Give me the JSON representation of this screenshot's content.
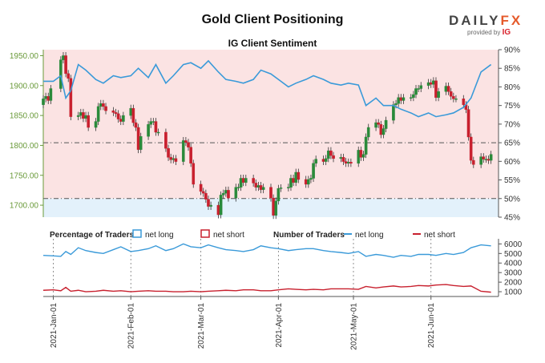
{
  "header": {
    "title": "Gold Client Positioning",
    "subtitle": "IG Client Sentiment",
    "logo_main": "DAILY",
    "logo_fx": "FX",
    "logo_provided": "provided by",
    "logo_ig": "IG"
  },
  "colors": {
    "net_long": "#3a9ad9",
    "net_short": "#c8202e",
    "up_candle": "#2a8a3a",
    "down_candle": "#c8202e",
    "short_zone": "#fbe3e3",
    "long_zone": "#e3f1fb",
    "axis_green": "#6a9a3a"
  },
  "chart_data": [
    {
      "type": "candlestick",
      "title": "IG Client Sentiment",
      "y_left": {
        "ticks": [
          "1950.00",
          "1900.00",
          "1850.00",
          "1800.00",
          "1750.00",
          "1700.00"
        ],
        "range": [
          1680,
          1960
        ]
      },
      "y_right": {
        "ticks": [
          "90%",
          "85%",
          "80%",
          "75%",
          "70%",
          "65%",
          "60%",
          "55%",
          "50%",
          "45%"
        ],
        "range": [
          45,
          90
        ]
      },
      "x_ticks": [
        "2021-Jan-01",
        "2021-Feb-01",
        "2021-Mar-01",
        "2021-Apr-01",
        "2021-May-01",
        "2021-Jun-01"
      ],
      "x_range": [
        "2020-12-28",
        "2021-06-28"
      ],
      "reference_levels_pct": [
        65,
        50
      ],
      "long_pct_series": {
        "name": "net long",
        "dates": [
          "2020-12-28",
          "2021-01-01",
          "2021-01-04",
          "2021-01-06",
          "2021-01-08",
          "2021-01-11",
          "2021-01-14",
          "2021-01-18",
          "2021-01-21",
          "2021-01-25",
          "2021-01-28",
          "2021-02-01",
          "2021-02-04",
          "2021-02-08",
          "2021-02-11",
          "2021-02-15",
          "2021-02-18",
          "2021-02-22",
          "2021-02-25",
          "2021-03-01",
          "2021-03-04",
          "2021-03-08",
          "2021-03-11",
          "2021-03-15",
          "2021-03-18",
          "2021-03-22",
          "2021-03-25",
          "2021-03-29",
          "2021-04-01",
          "2021-04-05",
          "2021-04-08",
          "2021-04-12",
          "2021-04-15",
          "2021-04-19",
          "2021-04-22",
          "2021-04-26",
          "2021-04-29",
          "2021-05-03",
          "2021-05-06",
          "2021-05-10",
          "2021-05-13",
          "2021-05-17",
          "2021-05-20",
          "2021-05-24",
          "2021-05-27",
          "2021-05-31",
          "2021-06-03",
          "2021-06-07",
          "2021-06-10",
          "2021-06-14",
          "2021-06-17",
          "2021-06-21",
          "2021-06-25"
        ],
        "values": [
          81.5,
          81.5,
          83,
          77,
          79,
          86,
          84.5,
          82,
          81,
          83,
          82.5,
          83,
          85,
          82.5,
          86,
          81,
          83,
          86,
          86.5,
          85,
          87,
          84,
          82,
          81.5,
          81,
          82,
          84.5,
          83.5,
          82,
          80,
          81,
          82,
          83,
          82,
          81,
          80.5,
          81,
          80.5,
          75,
          77,
          75,
          75,
          74,
          73,
          72,
          73,
          72,
          72.5,
          73,
          74.5,
          77,
          84,
          86
        ]
      },
      "price_candles": {
        "dates": [
          "2020-12-28",
          "2020-12-29",
          "2020-12-30",
          "2020-12-31",
          "2021-01-04",
          "2021-01-05",
          "2021-01-06",
          "2021-01-07",
          "2021-01-08",
          "2021-01-11",
          "2021-01-12",
          "2021-01-13",
          "2021-01-14",
          "2021-01-15",
          "2021-01-18",
          "2021-01-19",
          "2021-01-20",
          "2021-01-21",
          "2021-01-22",
          "2021-01-25",
          "2021-01-26",
          "2021-01-27",
          "2021-01-28",
          "2021-01-29",
          "2021-02-01",
          "2021-02-02",
          "2021-02-03",
          "2021-02-04",
          "2021-02-05",
          "2021-02-08",
          "2021-02-09",
          "2021-02-10",
          "2021-02-11",
          "2021-02-12",
          "2021-02-15",
          "2021-02-16",
          "2021-02-17",
          "2021-02-18",
          "2021-02-19",
          "2021-02-22",
          "2021-02-23",
          "2021-02-24",
          "2021-02-25",
          "2021-02-26",
          "2021-03-01",
          "2021-03-02",
          "2021-03-03",
          "2021-03-04",
          "2021-03-05",
          "2021-03-08",
          "2021-03-09",
          "2021-03-10",
          "2021-03-11",
          "2021-03-12",
          "2021-03-15",
          "2021-03-16",
          "2021-03-17",
          "2021-03-18",
          "2021-03-19",
          "2021-03-22",
          "2021-03-23",
          "2021-03-24",
          "2021-03-25",
          "2021-03-26",
          "2021-03-29",
          "2021-03-30",
          "2021-03-31",
          "2021-04-01",
          "2021-04-02",
          "2021-04-05",
          "2021-04-06",
          "2021-04-07",
          "2021-04-08",
          "2021-04-09",
          "2021-04-12",
          "2021-04-13",
          "2021-04-14",
          "2021-04-15",
          "2021-04-16",
          "2021-04-19",
          "2021-04-20",
          "2021-04-21",
          "2021-04-22",
          "2021-04-23",
          "2021-04-26",
          "2021-04-27",
          "2021-04-28",
          "2021-04-29",
          "2021-04-30",
          "2021-05-03",
          "2021-05-04",
          "2021-05-05",
          "2021-05-06",
          "2021-05-07",
          "2021-05-10",
          "2021-05-11",
          "2021-05-12",
          "2021-05-13",
          "2021-05-14",
          "2021-05-17",
          "2021-05-18",
          "2021-05-19",
          "2021-05-20",
          "2021-05-21",
          "2021-05-24",
          "2021-05-25",
          "2021-05-26",
          "2021-05-27",
          "2021-05-28",
          "2021-05-31",
          "2021-06-01",
          "2021-06-02",
          "2021-06-03",
          "2021-06-04",
          "2021-06-07",
          "2021-06-08",
          "2021-06-09",
          "2021-06-10",
          "2021-06-11",
          "2021-06-14",
          "2021-06-15",
          "2021-06-16",
          "2021-06-17",
          "2021-06-18",
          "2021-06-21",
          "2021-06-22",
          "2021-06-23",
          "2021-06-24",
          "2021-06-25"
        ],
        "close": [
          1878,
          1882,
          1875,
          1895,
          1943,
          1950,
          1920,
          1912,
          1848,
          1850,
          1855,
          1845,
          1850,
          1830,
          1840,
          1865,
          1870,
          1865,
          1858,
          1855,
          1853,
          1844,
          1840,
          1850,
          1862,
          1838,
          1830,
          1793,
          1815,
          1835,
          1840,
          1840,
          1822,
          1822,
          1795,
          1780,
          1776,
          1778,
          1773,
          1808,
          1805,
          1797,
          1770,
          1735,
          1723,
          1720,
          1710,
          1698,
          1700,
          1684,
          1717,
          1720,
          1725,
          1712,
          1730,
          1730,
          1745,
          1738,
          1745,
          1737,
          1730,
          1733,
          1726,
          1730,
          1712,
          1683,
          1707,
          1728,
          1729,
          1730,
          1745,
          1738,
          1755,
          1743,
          1735,
          1743,
          1745,
          1770,
          1777,
          1773,
          1778,
          1791,
          1783,
          1778,
          1780,
          1773,
          1770,
          1772,
          1770,
          1792,
          1780,
          1785,
          1814,
          1830,
          1838,
          1835,
          1818,
          1828,
          1842,
          1868,
          1870,
          1880,
          1875,
          1880,
          1880,
          1885,
          1895,
          1895,
          1900,
          1905,
          1902,
          1908,
          1880,
          1890,
          1899,
          1890,
          1882,
          1878,
          1878,
          1868,
          1860,
          1814,
          1775,
          1768,
          1781,
          1777,
          1777,
          1775,
          1785
        ]
      }
    },
    {
      "type": "line",
      "title": "Number of Traders",
      "y_ticks": [
        "6000",
        "5000",
        "4000",
        "3000",
        "2000",
        "1000"
      ],
      "y_range": [
        500,
        6200
      ],
      "series": [
        {
          "name": "net long",
          "dates": [
            "2020-12-28",
            "2021-01-01",
            "2021-01-04",
            "2021-01-06",
            "2021-01-08",
            "2021-01-11",
            "2021-01-14",
            "2021-01-18",
            "2021-01-21",
            "2021-01-25",
            "2021-01-28",
            "2021-02-01",
            "2021-02-04",
            "2021-02-08",
            "2021-02-11",
            "2021-02-15",
            "2021-02-18",
            "2021-02-22",
            "2021-02-25",
            "2021-03-01",
            "2021-03-04",
            "2021-03-08",
            "2021-03-11",
            "2021-03-15",
            "2021-03-18",
            "2021-03-22",
            "2021-03-25",
            "2021-03-29",
            "2021-04-01",
            "2021-04-05",
            "2021-04-08",
            "2021-04-12",
            "2021-04-15",
            "2021-04-19",
            "2021-04-22",
            "2021-04-26",
            "2021-04-29",
            "2021-05-03",
            "2021-05-06",
            "2021-05-10",
            "2021-05-13",
            "2021-05-17",
            "2021-05-20",
            "2021-05-24",
            "2021-05-27",
            "2021-05-31",
            "2021-06-03",
            "2021-06-07",
            "2021-06-10",
            "2021-06-14",
            "2021-06-17",
            "2021-06-21",
            "2021-06-25"
          ],
          "values": [
            4800,
            4750,
            4700,
            5200,
            4900,
            5600,
            5300,
            5100,
            5000,
            5400,
            5700,
            5200,
            5300,
            5500,
            5800,
            5300,
            5500,
            6000,
            5700,
            5600,
            5900,
            5600,
            5400,
            5300,
            5200,
            5400,
            5800,
            5600,
            5500,
            5300,
            5400,
            5500,
            5500,
            5300,
            5200,
            5100,
            5000,
            5200,
            4700,
            4900,
            4800,
            4600,
            4800,
            4700,
            4900,
            4900,
            4800,
            5000,
            4900,
            5100,
            5600,
            5900,
            5800
          ]
        },
        {
          "name": "net short",
          "dates": [
            "2020-12-28",
            "2021-01-01",
            "2021-01-04",
            "2021-01-06",
            "2021-01-08",
            "2021-01-11",
            "2021-01-14",
            "2021-01-18",
            "2021-01-21",
            "2021-01-25",
            "2021-01-28",
            "2021-02-01",
            "2021-02-04",
            "2021-02-08",
            "2021-02-11",
            "2021-02-15",
            "2021-02-18",
            "2021-02-22",
            "2021-02-25",
            "2021-03-01",
            "2021-03-04",
            "2021-03-08",
            "2021-03-11",
            "2021-03-15",
            "2021-03-18",
            "2021-03-22",
            "2021-03-25",
            "2021-03-29",
            "2021-04-01",
            "2021-04-05",
            "2021-04-08",
            "2021-04-12",
            "2021-04-15",
            "2021-04-19",
            "2021-04-22",
            "2021-04-26",
            "2021-04-29",
            "2021-05-03",
            "2021-05-06",
            "2021-05-10",
            "2021-05-13",
            "2021-05-17",
            "2021-05-20",
            "2021-05-24",
            "2021-05-27",
            "2021-05-31",
            "2021-06-03",
            "2021-06-07",
            "2021-06-10",
            "2021-06-14",
            "2021-06-17",
            "2021-06-21",
            "2021-06-25"
          ],
          "values": [
            1150,
            1200,
            1100,
            1450,
            1050,
            1150,
            1000,
            1050,
            1150,
            1050,
            1100,
            1000,
            1050,
            1100,
            1050,
            1050,
            1000,
            1000,
            1050,
            1000,
            1050,
            1100,
            1150,
            1100,
            1200,
            1200,
            1100,
            1100,
            1200,
            1300,
            1250,
            1200,
            1250,
            1200,
            1300,
            1300,
            1300,
            1250,
            1550,
            1400,
            1500,
            1600,
            1500,
            1550,
            1650,
            1600,
            1700,
            1750,
            1650,
            1550,
            1600,
            1050,
            950
          ]
        }
      ],
      "legend": {
        "pct_label": "Percentage of Traders",
        "pct_items": [
          "net long",
          "net short"
        ],
        "num_label": "Number of Traders",
        "num_items": [
          "net long",
          "net short"
        ]
      }
    }
  ]
}
